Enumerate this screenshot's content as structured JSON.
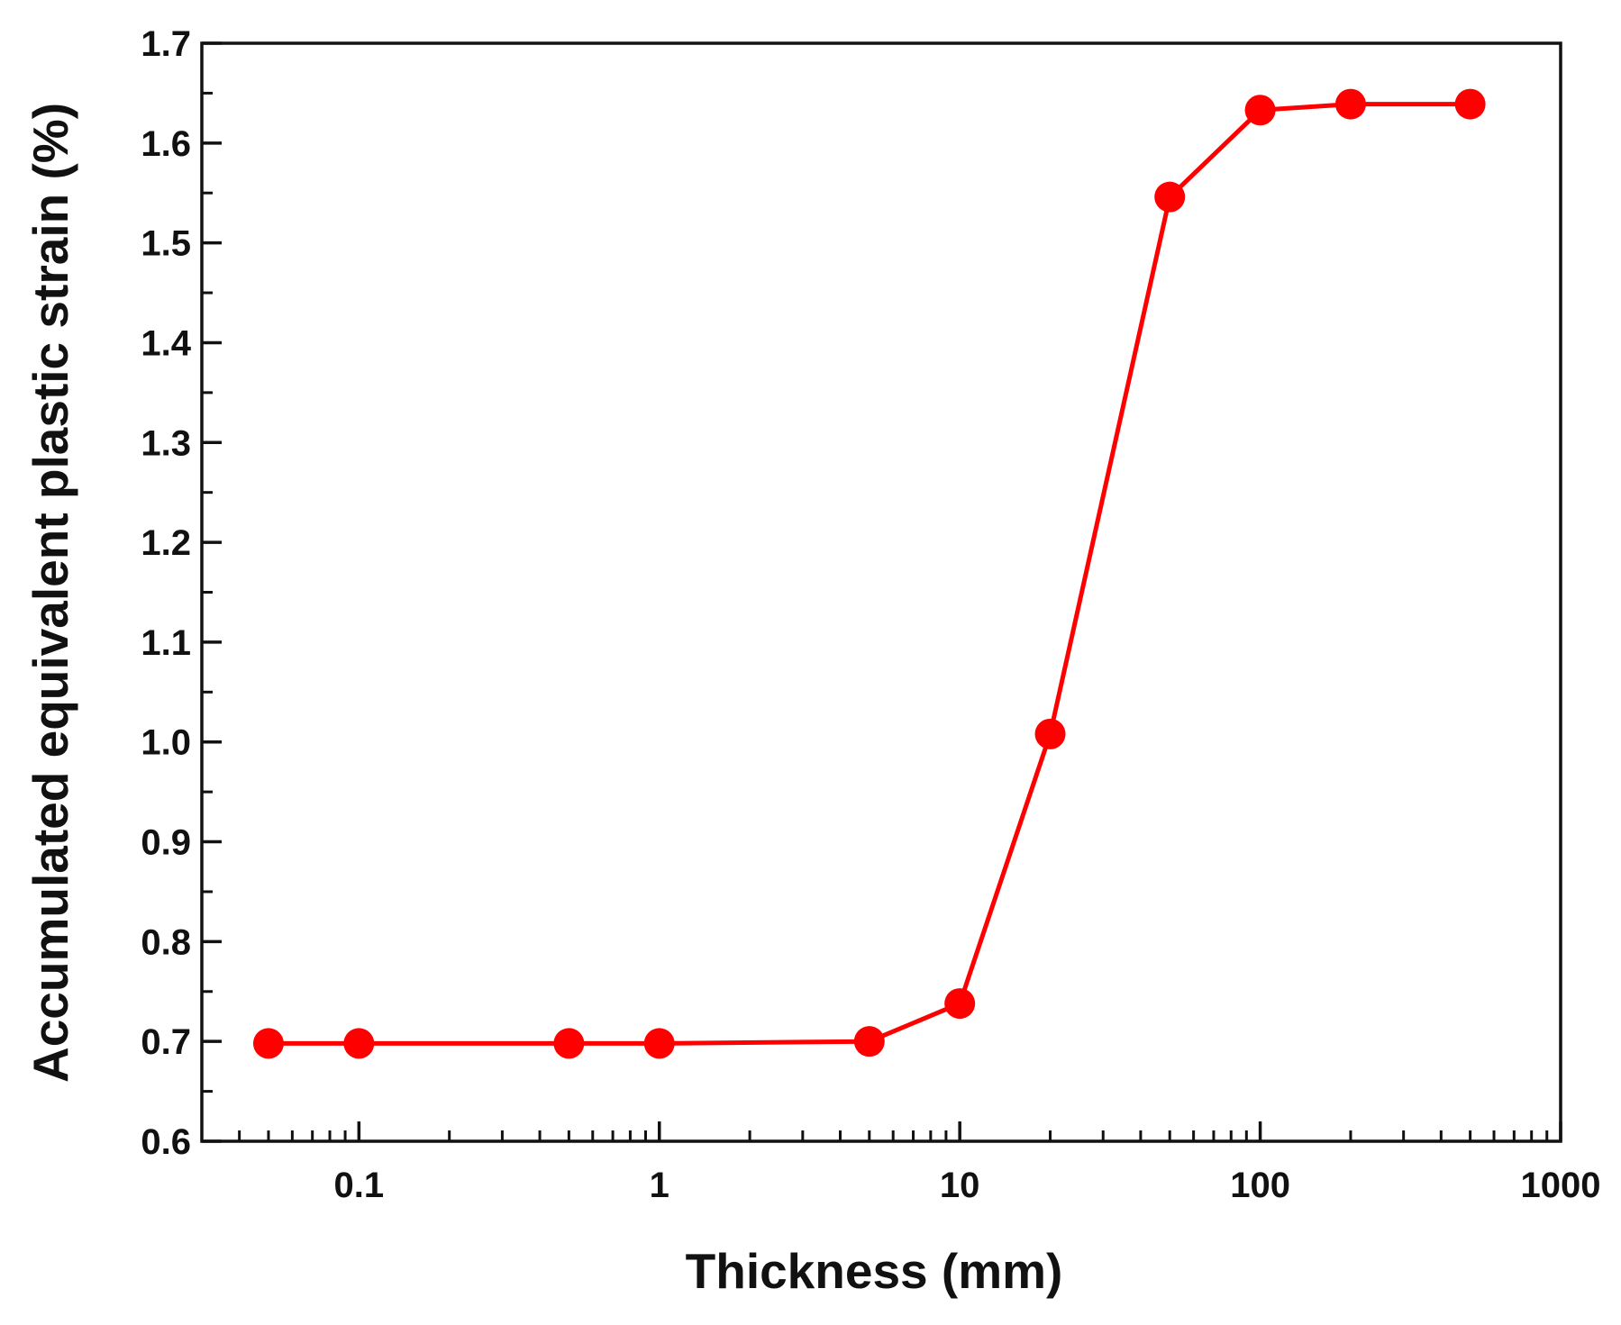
{
  "chart_data": {
    "type": "line",
    "title": "",
    "xlabel": "Thickness (mm)",
    "ylabel": "Accumulated equivalent plastic strain (%)",
    "xscale": "log",
    "xlim": [
      0.03,
      1000
    ],
    "ylim": [
      0.6,
      1.7
    ],
    "grid": false,
    "legend": "none",
    "x_ticks": [
      {
        "value": 0.1,
        "label": "0.1"
      },
      {
        "value": 1,
        "label": "1"
      },
      {
        "value": 10,
        "label": "10"
      },
      {
        "value": 100,
        "label": "100"
      },
      {
        "value": 1000,
        "label": "1000"
      }
    ],
    "y_ticks": [
      {
        "value": 0.6,
        "label": "0.6"
      },
      {
        "value": 0.7,
        "label": "0.7"
      },
      {
        "value": 0.8,
        "label": "0.8"
      },
      {
        "value": 0.9,
        "label": "0.9"
      },
      {
        "value": 1.0,
        "label": "1.0"
      },
      {
        "value": 1.1,
        "label": "1.1"
      },
      {
        "value": 1.2,
        "label": "1.2"
      },
      {
        "value": 1.3,
        "label": "1.3"
      },
      {
        "value": 1.4,
        "label": "1.4"
      },
      {
        "value": 1.5,
        "label": "1.5"
      },
      {
        "value": 1.6,
        "label": "1.6"
      },
      {
        "value": 1.7,
        "label": "1.7"
      }
    ],
    "series": [
      {
        "name": "Accumulated equivalent plastic strain",
        "color": "#ff0000",
        "marker": "circle",
        "x": [
          0.05,
          0.1,
          0.5,
          1,
          5,
          10,
          20,
          50,
          100,
          200,
          500
        ],
        "values": [
          0.698,
          0.698,
          0.698,
          0.698,
          0.7,
          0.738,
          1.008,
          1.546,
          1.633,
          1.639,
          1.639
        ]
      }
    ]
  }
}
